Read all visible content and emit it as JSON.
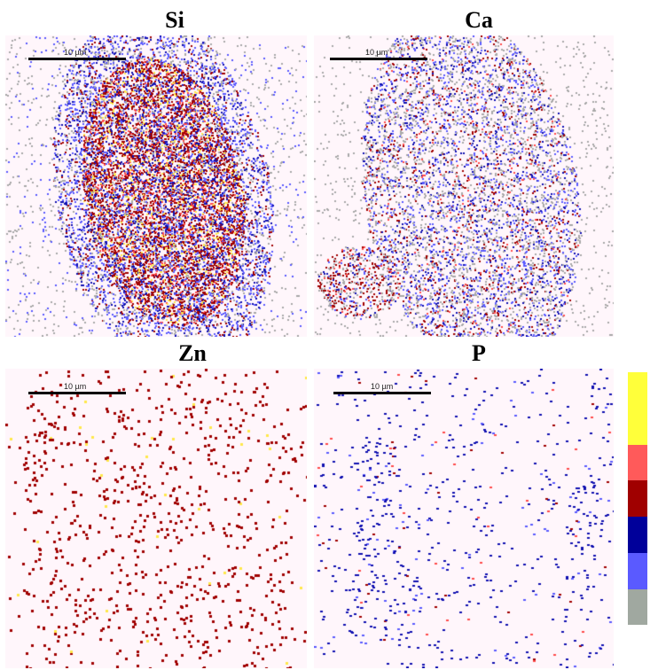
{
  "panels": [
    {
      "id": "si",
      "title": "Si",
      "scale_label": "10 µm",
      "palette": [
        "#a8a8a8",
        "#5a5aff",
        "#1010b0",
        "#a00000",
        "#ff4a4a",
        "#ffe84a"
      ],
      "density": "high"
    },
    {
      "id": "ca",
      "title": "Ca",
      "scale_label": "10 µm",
      "palette": [
        "#a8a8a8",
        "#5a5aff",
        "#1010b0",
        "#a00000",
        "#ff4a4a"
      ],
      "density": "medium"
    },
    {
      "id": "zn",
      "title": "Zn",
      "scale_label": "10 µm",
      "palette": [
        "#a00000",
        "#ffe84a"
      ],
      "density": "sparse"
    },
    {
      "id": "p",
      "title": "P",
      "scale_label": "10 µm",
      "palette": [
        "#1010b0",
        "#5a5aff",
        "#ff4a4a",
        "#a00000"
      ],
      "density": "sparse"
    }
  ],
  "colorbar": {
    "colors": [
      "#ffff3a",
      "#ffff3a",
      "#ff5a5a",
      "#a00000",
      "#00009a",
      "#5a5aff",
      "#a0a8a0",
      "#ffffff"
    ],
    "max_label": "",
    "min_label": ""
  }
}
